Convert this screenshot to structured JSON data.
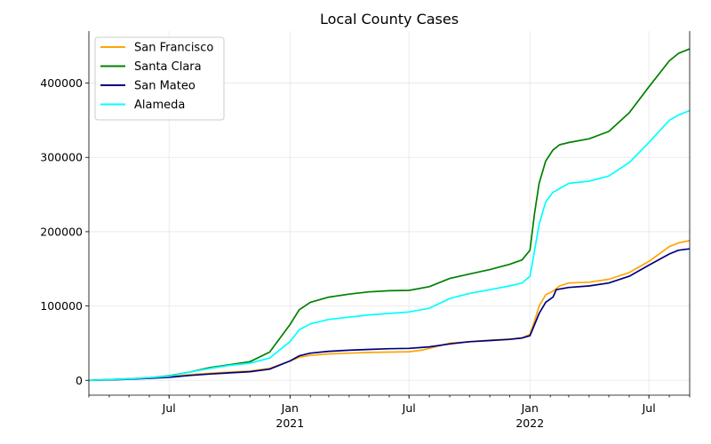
{
  "chart_data": {
    "type": "line",
    "title": "Local County Cases",
    "xlabel": "",
    "ylabel": "",
    "x_range": [
      "2020-03-01",
      "2022-09-01"
    ],
    "ylim": [
      -20000,
      470000
    ],
    "y_ticks": [
      0,
      100000,
      200000,
      300000,
      400000
    ],
    "y_tick_labels": [
      "0",
      "100000",
      "200000",
      "300000",
      "400000"
    ],
    "x_major_ticks": [
      {
        "date": "2020-07-01",
        "label": "Jul",
        "sublabel": ""
      },
      {
        "date": "2021-01-01",
        "label": "Jan",
        "sublabel": "2021"
      },
      {
        "date": "2021-07-01",
        "label": "Jul",
        "sublabel": ""
      },
      {
        "date": "2022-01-01",
        "label": "Jan",
        "sublabel": "2022"
      },
      {
        "date": "2022-07-01",
        "label": "Jul",
        "sublabel": ""
      }
    ],
    "grid": true,
    "legend_position": "top-left",
    "series": [
      {
        "name": "San Francisco",
        "color": "#ffa500",
        "points": [
          [
            "2020-03-01",
            0
          ],
          [
            "2020-04-01",
            800
          ],
          [
            "2020-05-01",
            2000
          ],
          [
            "2020-06-01",
            3200
          ],
          [
            "2020-07-01",
            4500
          ],
          [
            "2020-08-01",
            7500
          ],
          [
            "2020-09-01",
            9500
          ],
          [
            "2020-10-01",
            11000
          ],
          [
            "2020-11-01",
            12500
          ],
          [
            "2020-12-01",
            16000
          ],
          [
            "2021-01-01",
            26000
          ],
          [
            "2021-01-15",
            31000
          ],
          [
            "2021-02-01",
            33500
          ],
          [
            "2021-03-01",
            35500
          ],
          [
            "2021-04-01",
            36500
          ],
          [
            "2021-05-01",
            37500
          ],
          [
            "2021-06-01",
            38000
          ],
          [
            "2021-07-01",
            38500
          ],
          [
            "2021-07-20",
            40500
          ],
          [
            "2021-08-01",
            43000
          ],
          [
            "2021-09-01",
            50000
          ],
          [
            "2021-10-01",
            52000
          ],
          [
            "2021-11-01",
            54000
          ],
          [
            "2021-12-01",
            55500
          ],
          [
            "2021-12-20",
            57000
          ],
          [
            "2022-01-01",
            62000
          ],
          [
            "2022-01-08",
            80000
          ],
          [
            "2022-01-15",
            100000
          ],
          [
            "2022-01-25",
            115000
          ],
          [
            "2022-02-05",
            120000
          ],
          [
            "2022-02-15",
            127000
          ],
          [
            "2022-03-01",
            131000
          ],
          [
            "2022-04-01",
            132000
          ],
          [
            "2022-05-01",
            136000
          ],
          [
            "2022-06-01",
            145000
          ],
          [
            "2022-07-01",
            160000
          ],
          [
            "2022-08-01",
            180000
          ],
          [
            "2022-08-15",
            185000
          ],
          [
            "2022-09-01",
            188000
          ]
        ]
      },
      {
        "name": "Santa Clara",
        "color": "#008000",
        "points": [
          [
            "2020-03-01",
            0
          ],
          [
            "2020-04-01",
            1000
          ],
          [
            "2020-05-01",
            2000
          ],
          [
            "2020-06-01",
            3500
          ],
          [
            "2020-07-01",
            6000
          ],
          [
            "2020-08-01",
            11000
          ],
          [
            "2020-09-01",
            17000
          ],
          [
            "2020-10-01",
            21000
          ],
          [
            "2020-11-01",
            25000
          ],
          [
            "2020-12-01",
            38000
          ],
          [
            "2021-01-01",
            75000
          ],
          [
            "2021-01-15",
            95000
          ],
          [
            "2021-02-01",
            105000
          ],
          [
            "2021-03-01",
            112000
          ],
          [
            "2021-04-01",
            116000
          ],
          [
            "2021-05-01",
            119000
          ],
          [
            "2021-06-01",
            120500
          ],
          [
            "2021-07-01",
            121000
          ],
          [
            "2021-08-01",
            126000
          ],
          [
            "2021-09-01",
            137000
          ],
          [
            "2021-10-01",
            143000
          ],
          [
            "2021-11-01",
            149000
          ],
          [
            "2021-12-01",
            156000
          ],
          [
            "2021-12-20",
            162000
          ],
          [
            "2022-01-01",
            175000
          ],
          [
            "2022-01-08",
            225000
          ],
          [
            "2022-01-15",
            265000
          ],
          [
            "2022-01-25",
            295000
          ],
          [
            "2022-02-05",
            310000
          ],
          [
            "2022-02-15",
            317000
          ],
          [
            "2022-03-01",
            320000
          ],
          [
            "2022-04-01",
            325000
          ],
          [
            "2022-05-01",
            335000
          ],
          [
            "2022-06-01",
            360000
          ],
          [
            "2022-07-01",
            395000
          ],
          [
            "2022-08-01",
            430000
          ],
          [
            "2022-08-15",
            440000
          ],
          [
            "2022-09-01",
            446000
          ]
        ]
      },
      {
        "name": "San Mateo",
        "color": "#000080",
        "points": [
          [
            "2020-03-01",
            0
          ],
          [
            "2020-04-01",
            600
          ],
          [
            "2020-05-01",
            1500
          ],
          [
            "2020-06-01",
            2700
          ],
          [
            "2020-07-01",
            4000
          ],
          [
            "2020-08-01",
            6500
          ],
          [
            "2020-09-01",
            8500
          ],
          [
            "2020-10-01",
            10000
          ],
          [
            "2020-11-01",
            11500
          ],
          [
            "2020-12-01",
            15000
          ],
          [
            "2021-01-01",
            26000
          ],
          [
            "2021-01-15",
            33000
          ],
          [
            "2021-02-01",
            36500
          ],
          [
            "2021-03-01",
            39000
          ],
          [
            "2021-04-01",
            40500
          ],
          [
            "2021-05-01",
            41500
          ],
          [
            "2021-06-01",
            42500
          ],
          [
            "2021-07-01",
            43000
          ],
          [
            "2021-08-01",
            45000
          ],
          [
            "2021-09-01",
            49000
          ],
          [
            "2021-10-01",
            52000
          ],
          [
            "2021-11-01",
            53500
          ],
          [
            "2021-12-01",
            55000
          ],
          [
            "2021-12-20",
            57000
          ],
          [
            "2022-01-01",
            60000
          ],
          [
            "2022-01-08",
            75000
          ],
          [
            "2022-01-15",
            90000
          ],
          [
            "2022-01-25",
            105000
          ],
          [
            "2022-02-05",
            112000
          ],
          [
            "2022-02-10",
            122000
          ],
          [
            "2022-03-01",
            125000
          ],
          [
            "2022-04-01",
            127000
          ],
          [
            "2022-05-01",
            131000
          ],
          [
            "2022-06-01",
            140000
          ],
          [
            "2022-07-01",
            155000
          ],
          [
            "2022-08-01",
            170000
          ],
          [
            "2022-08-15",
            175000
          ],
          [
            "2022-09-01",
            177000
          ]
        ]
      },
      {
        "name": "Alameda",
        "color": "#00ffff",
        "points": [
          [
            "2020-03-01",
            0
          ],
          [
            "2020-04-01",
            900
          ],
          [
            "2020-05-01",
            2000
          ],
          [
            "2020-06-01",
            3500
          ],
          [
            "2020-07-01",
            5500
          ],
          [
            "2020-08-01",
            11000
          ],
          [
            "2020-09-01",
            16000
          ],
          [
            "2020-10-01",
            20000
          ],
          [
            "2020-11-01",
            23000
          ],
          [
            "2020-12-01",
            30000
          ],
          [
            "2021-01-01",
            52000
          ],
          [
            "2021-01-15",
            68000
          ],
          [
            "2021-02-01",
            76000
          ],
          [
            "2021-03-01",
            82000
          ],
          [
            "2021-04-01",
            85000
          ],
          [
            "2021-05-01",
            88000
          ],
          [
            "2021-06-01",
            90000
          ],
          [
            "2021-07-01",
            92000
          ],
          [
            "2021-08-01",
            97000
          ],
          [
            "2021-09-01",
            110000
          ],
          [
            "2021-10-01",
            117000
          ],
          [
            "2021-11-01",
            122000
          ],
          [
            "2021-12-01",
            127000
          ],
          [
            "2021-12-20",
            131000
          ],
          [
            "2022-01-01",
            140000
          ],
          [
            "2022-01-08",
            175000
          ],
          [
            "2022-01-15",
            210000
          ],
          [
            "2022-01-25",
            240000
          ],
          [
            "2022-02-05",
            253000
          ],
          [
            "2022-02-15",
            258000
          ],
          [
            "2022-03-01",
            265000
          ],
          [
            "2022-04-01",
            268000
          ],
          [
            "2022-05-01",
            275000
          ],
          [
            "2022-06-01",
            293000
          ],
          [
            "2022-07-01",
            320000
          ],
          [
            "2022-08-01",
            350000
          ],
          [
            "2022-08-15",
            357000
          ],
          [
            "2022-09-01",
            363000
          ]
        ]
      }
    ]
  }
}
